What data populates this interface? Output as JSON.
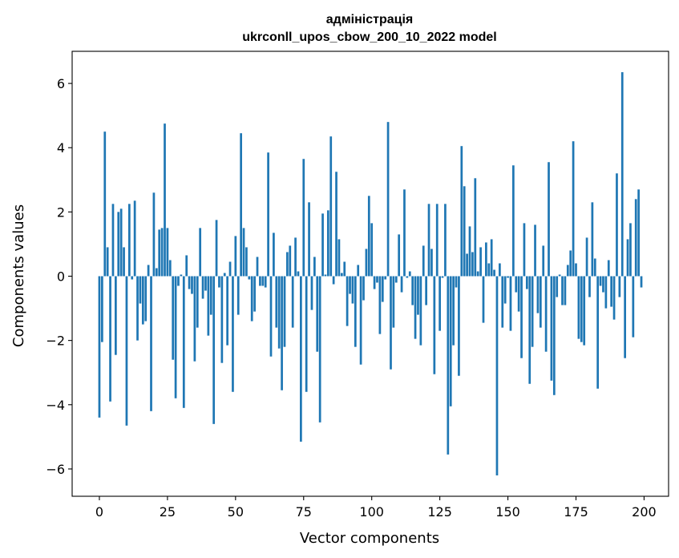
{
  "chart_data": {
    "type": "bar",
    "title_line1": "адміністрація",
    "title_line2": "ukrconll_upos_cbow_200_10_2022 model",
    "xlabel": "Vector components",
    "ylabel": "Components values",
    "xlim": [
      -10,
      209
    ],
    "ylim": [
      -6.85,
      7.0
    ],
    "xticks": [
      0,
      25,
      50,
      75,
      100,
      125,
      150,
      175,
      200
    ],
    "yticks": [
      -6,
      -4,
      -2,
      0,
      2,
      4,
      6
    ],
    "ytick_labels": [
      "−6",
      "−4",
      "−2",
      "0",
      "2",
      "4",
      "6"
    ],
    "grid": false,
    "bar_color": "#1f77b4",
    "values": [
      -4.4,
      -2.05,
      4.5,
      0.9,
      -3.9,
      2.25,
      -2.45,
      2.0,
      2.1,
      0.9,
      -4.65,
      2.25,
      -0.1,
      2.35,
      -2.0,
      -0.85,
      -1.5,
      -1.4,
      0.35,
      -4.2,
      2.6,
      0.25,
      1.45,
      1.5,
      4.75,
      1.5,
      0.5,
      -2.6,
      -3.8,
      -0.3,
      0.05,
      -4.1,
      0.65,
      -0.4,
      -0.55,
      -2.65,
      -1.6,
      1.5,
      -0.7,
      -0.45,
      -1.85,
      -1.2,
      -4.6,
      1.75,
      -0.35,
      -2.7,
      0.1,
      -2.15,
      0.45,
      -3.6,
      1.25,
      -1.2,
      4.45,
      1.5,
      0.9,
      -0.1,
      -1.4,
      -1.1,
      0.6,
      -0.3,
      -0.3,
      -0.35,
      3.85,
      -2.5,
      1.35,
      -1.6,
      -2.25,
      -3.55,
      -2.2,
      0.75,
      0.95,
      -1.6,
      1.2,
      0.15,
      -5.15,
      3.65,
      -3.6,
      2.3,
      -1.05,
      0.6,
      -2.35,
      -4.55,
      1.95,
      0.05,
      2.05,
      4.35,
      -0.25,
      3.25,
      1.15,
      0.1,
      0.45,
      -1.55,
      -0.55,
      -0.85,
      -2.2,
      0.35,
      -2.75,
      -0.75,
      0.85,
      2.5,
      1.65,
      -0.4,
      -0.2,
      -1.8,
      -0.8,
      -0.1,
      4.8,
      -2.9,
      -1.6,
      -0.2,
      1.3,
      -0.5,
      2.7,
      -0.05,
      0.15,
      -0.9,
      -1.95,
      -1.2,
      -2.15,
      0.95,
      -0.9,
      2.25,
      0.85,
      -3.05,
      2.25,
      -1.7,
      -0.05,
      2.25,
      -5.55,
      -4.05,
      -2.15,
      -0.35,
      -3.1,
      4.05,
      2.8,
      0.7,
      1.55,
      0.75,
      3.05,
      0.15,
      0.9,
      -1.45,
      1.05,
      0.4,
      1.15,
      0.2,
      -6.2,
      0.4,
      -1.6,
      -0.85,
      -0.05,
      -1.7,
      3.45,
      -0.5,
      -1.1,
      -2.55,
      1.65,
      -0.4,
      -3.35,
      -2.2,
      1.6,
      -1.15,
      -1.6,
      0.95,
      -2.35,
      3.55,
      -3.25,
      -3.7,
      -0.65,
      0.05,
      -0.9,
      -0.9,
      0.35,
      0.8,
      4.2,
      0.4,
      -1.95,
      -2.05,
      -2.15,
      1.2,
      -0.65,
      2.3,
      0.55,
      -3.5,
      -0.3,
      -0.5,
      -1.0,
      0.5,
      -0.95,
      -1.35,
      3.2,
      -0.65,
      6.35,
      -2.55,
      1.15,
      1.65,
      -1.9,
      2.4,
      2.7,
      -0.35
    ]
  }
}
